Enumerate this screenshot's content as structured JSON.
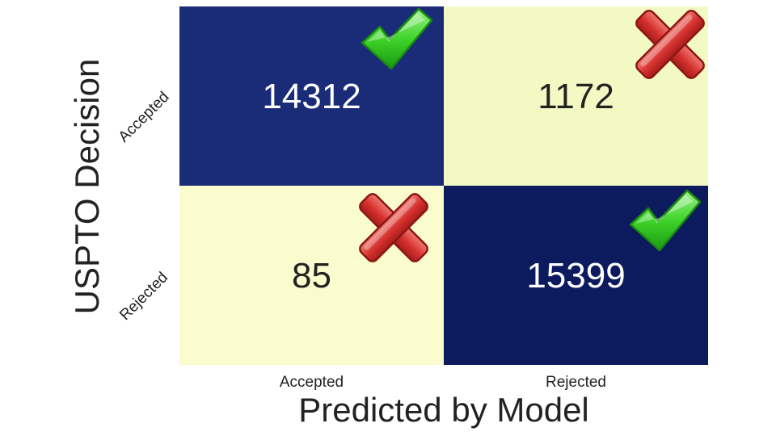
{
  "chart_data": {
    "type": "heatmap",
    "title": "",
    "xlabel": "Predicted by Model",
    "ylabel": "USPTO Decision",
    "x_categories": [
      "Accepted",
      "Rejected"
    ],
    "y_categories": [
      "Accepted",
      "Rejected"
    ],
    "values": [
      [
        14312,
        1172
      ],
      [
        85,
        15399
      ]
    ],
    "cell_colors": [
      [
        "#1a2b78",
        "#f3f9c3"
      ],
      [
        "#fafccd",
        "#0c1b5e"
      ]
    ],
    "text_colors": [
      [
        "#ffffff",
        "#222222"
      ],
      [
        "#222222",
        "#ffffff"
      ]
    ],
    "markers": [
      [
        "check-icon",
        "cross-icon"
      ],
      [
        "cross-icon",
        "check-icon"
      ]
    ],
    "colors": {
      "check": "#33cc22",
      "cross": "#d6312e"
    }
  }
}
